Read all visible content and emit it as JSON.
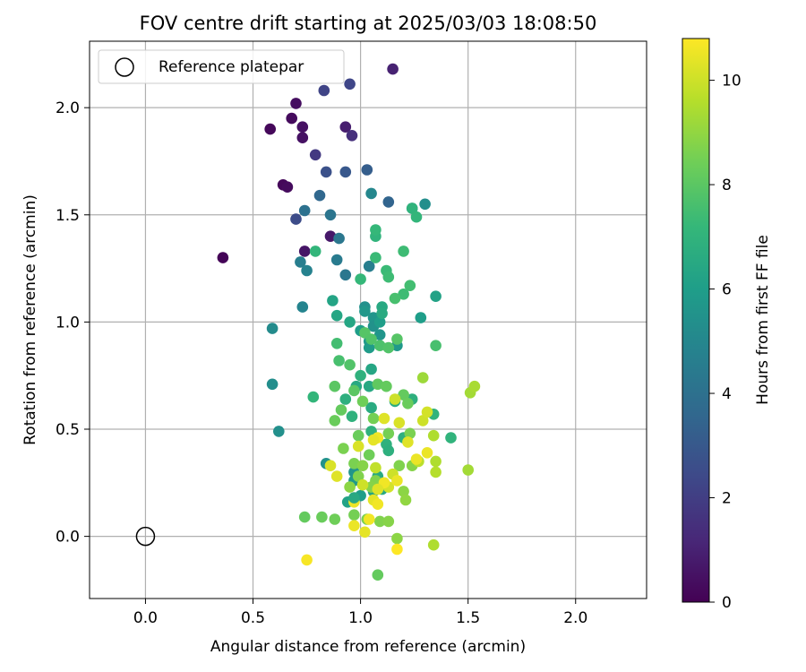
{
  "chart_data": {
    "type": "scatter",
    "title": "FOV centre drift starting at 2025/03/03 18:08:50",
    "xlabel": "Angular distance from reference (arcmin)",
    "ylabel": "Rotation from reference (arcmin)",
    "xlim": [
      -0.26,
      2.33
    ],
    "ylim": [
      -0.29,
      2.31
    ],
    "x_ticks": [
      "0.0",
      "0.5",
      "1.0",
      "1.5",
      "2.0"
    ],
    "y_ticks": [
      "0.0",
      "0.5",
      "1.0",
      "1.5",
      "2.0"
    ],
    "grid": true,
    "legend": {
      "position": "top-left",
      "entries": [
        "Reference platepar"
      ]
    },
    "reference_point": {
      "x": 0.0,
      "y": 0.0
    },
    "colorbar": {
      "label": "Hours from first FF file",
      "min": 0,
      "max": 10.8,
      "ticks": [
        "0",
        "2",
        "4",
        "6",
        "8",
        "10"
      ],
      "colormap": [
        "#440154",
        "#482878",
        "#3e4989",
        "#31688e",
        "#26828e",
        "#1f9e89",
        "#35b779",
        "#6ece58",
        "#b5de2b",
        "#fde725"
      ]
    },
    "points": [
      [
        0.36,
        1.3,
        0.1
      ],
      [
        0.58,
        1.9,
        0.2
      ],
      [
        0.64,
        1.64,
        0.2
      ],
      [
        0.66,
        1.63,
        0.3
      ],
      [
        0.68,
        1.95,
        0.3
      ],
      [
        0.7,
        2.02,
        0.4
      ],
      [
        0.73,
        1.91,
        0.5
      ],
      [
        0.73,
        1.86,
        0.5
      ],
      [
        0.74,
        1.33,
        0.6
      ],
      [
        0.86,
        1.4,
        0.7
      ],
      [
        0.93,
        1.91,
        0.9
      ],
      [
        1.15,
        2.18,
        1.0
      ],
      [
        0.96,
        1.87,
        1.5
      ],
      [
        0.79,
        1.78,
        1.8
      ],
      [
        0.83,
        2.08,
        2.2
      ],
      [
        0.95,
        2.11,
        2.3
      ],
      [
        0.7,
        1.48,
        2.5
      ],
      [
        0.84,
        1.7,
        2.7
      ],
      [
        0.93,
        1.7,
        3.0
      ],
      [
        1.03,
        1.71,
        3.2
      ],
      [
        0.81,
        1.59,
        3.6
      ],
      [
        1.13,
        1.56,
        3.5
      ],
      [
        0.74,
        1.52,
        4.0
      ],
      [
        0.86,
        1.5,
        4.2
      ],
      [
        0.9,
        1.39,
        4.3
      ],
      [
        0.93,
        1.22,
        4.3
      ],
      [
        0.89,
        1.29,
        4.5
      ],
      [
        1.04,
        1.26,
        4.6
      ],
      [
        0.72,
        1.28,
        4.6
      ],
      [
        0.75,
        1.24,
        4.8
      ],
      [
        0.73,
        1.07,
        4.9
      ],
      [
        1.05,
        1.6,
        5.0
      ],
      [
        1.24,
        1.53,
        5.0
      ],
      [
        1.3,
        1.55,
        5.3
      ],
      [
        0.59,
        0.97,
        5.2
      ],
      [
        0.59,
        0.71,
        5.3
      ],
      [
        0.62,
        0.49,
        5.4
      ],
      [
        1.02,
        1.07,
        5.4
      ],
      [
        1.06,
        1.02,
        5.6
      ],
      [
        1.02,
        1.05,
        5.7
      ],
      [
        1.06,
        0.98,
        5.5
      ],
      [
        1.09,
        0.94,
        5.6
      ],
      [
        1.04,
        0.91,
        5.8
      ],
      [
        1.09,
        1.0,
        6.0
      ],
      [
        1.0,
        0.96,
        6.0
      ],
      [
        1.04,
        0.88,
        5.9
      ],
      [
        1.17,
        0.89,
        5.8
      ],
      [
        1.28,
        1.02,
        6.0
      ],
      [
        1.35,
        1.12,
        6.2
      ],
      [
        0.87,
        1.1,
        6.3
      ],
      [
        0.89,
        1.03,
        6.4
      ],
      [
        0.95,
        1.0,
        6.4
      ],
      [
        1.1,
        1.07,
        6.5
      ],
      [
        1.1,
        1.04,
        6.6
      ],
      [
        1.05,
        0.78,
        6.4
      ],
      [
        1.04,
        0.7,
        6.5
      ],
      [
        0.98,
        0.7,
        6.5
      ],
      [
        1.05,
        0.6,
        6.6
      ],
      [
        1.16,
        0.63,
        6.7
      ],
      [
        1.24,
        0.64,
        6.8
      ],
      [
        0.93,
        0.64,
        6.8
      ],
      [
        1.0,
        0.75,
        6.9
      ],
      [
        0.96,
        0.56,
        6.9
      ],
      [
        1.05,
        0.49,
        6.9
      ],
      [
        1.12,
        0.43,
        6.9
      ],
      [
        1.2,
        0.46,
        6.8
      ],
      [
        1.34,
        0.57,
        7.0
      ],
      [
        1.42,
        0.46,
        7.0
      ],
      [
        0.78,
        0.65,
        7.1
      ],
      [
        0.84,
        0.34,
        5.5
      ],
      [
        0.97,
        0.3,
        5.6
      ],
      [
        0.97,
        0.26,
        5.8
      ],
      [
        1.0,
        0.19,
        6.0
      ],
      [
        0.94,
        0.16,
        6.2
      ],
      [
        1.06,
        0.21,
        6.3
      ],
      [
        1.1,
        0.22,
        6.5
      ],
      [
        1.08,
        0.28,
        6.6
      ],
      [
        1.13,
        0.4,
        6.8
      ],
      [
        1.24,
        1.53,
        7.0
      ],
      [
        1.26,
        1.49,
        7.1
      ],
      [
        1.0,
        1.2,
        7.2
      ],
      [
        1.12,
        1.24,
        7.3
      ],
      [
        1.13,
        1.21,
        7.4
      ],
      [
        1.2,
        1.13,
        7.4
      ],
      [
        1.23,
        1.17,
        7.5
      ],
      [
        1.16,
        1.11,
        7.6
      ],
      [
        1.07,
        1.4,
        7.0
      ],
      [
        1.07,
        1.43,
        7.2
      ],
      [
        1.07,
        1.3,
        7.3
      ],
      [
        1.2,
        1.33,
        7.4
      ],
      [
        0.79,
        1.33,
        7.1
      ],
      [
        0.89,
        0.9,
        7.5
      ],
      [
        0.9,
        0.82,
        7.6
      ],
      [
        0.95,
        0.8,
        7.8
      ],
      [
        1.02,
        0.95,
        7.9
      ],
      [
        1.05,
        0.92,
        7.8
      ],
      [
        1.09,
        0.89,
        7.7
      ],
      [
        1.13,
        0.88,
        7.8
      ],
      [
        1.17,
        0.92,
        7.9
      ],
      [
        1.35,
        0.89,
        7.6
      ],
      [
        0.88,
        0.7,
        8.0
      ],
      [
        0.97,
        0.68,
        8.0
      ],
      [
        1.08,
        0.71,
        8.1
      ],
      [
        1.12,
        0.7,
        8.2
      ],
      [
        1.2,
        0.66,
        8.2
      ],
      [
        1.22,
        0.62,
        8.3
      ],
      [
        0.91,
        0.59,
        8.2
      ],
      [
        0.88,
        0.54,
        8.3
      ],
      [
        1.01,
        0.63,
        8.4
      ],
      [
        1.06,
        0.55,
        8.5
      ],
      [
        1.13,
        0.48,
        8.5
      ],
      [
        1.23,
        0.48,
        8.6
      ],
      [
        0.99,
        0.47,
        8.3
      ],
      [
        1.04,
        0.38,
        8.4
      ],
      [
        0.92,
        0.41,
        8.6
      ],
      [
        0.97,
        0.34,
        8.6
      ],
      [
        0.99,
        0.28,
        8.7
      ],
      [
        1.01,
        0.33,
        8.8
      ],
      [
        1.07,
        0.26,
        8.7
      ],
      [
        1.05,
        0.23,
        8.8
      ],
      [
        0.95,
        0.23,
        8.9
      ],
      [
        1.2,
        0.21,
        8.9
      ],
      [
        1.21,
        0.17,
        9.0
      ],
      [
        1.18,
        0.33,
        8.7
      ],
      [
        1.24,
        0.33,
        8.8
      ],
      [
        0.74,
        0.09,
        8.2
      ],
      [
        0.82,
        0.09,
        8.3
      ],
      [
        0.88,
        0.08,
        8.4
      ],
      [
        0.97,
        0.1,
        8.5
      ],
      [
        1.03,
        0.08,
        8.6
      ],
      [
        1.09,
        0.07,
        8.7
      ],
      [
        1.13,
        0.07,
        8.8
      ],
      [
        1.17,
        -0.01,
        8.9
      ],
      [
        1.08,
        -0.18,
        8.2
      ],
      [
        1.34,
        -0.04,
        9.5
      ],
      [
        1.29,
        0.74,
        9.2
      ],
      [
        1.5,
        0.31,
        9.3
      ],
      [
        1.51,
        0.67,
        9.3
      ],
      [
        1.53,
        0.7,
        9.4
      ],
      [
        1.34,
        0.47,
        9.5
      ],
      [
        1.35,
        0.35,
        9.5
      ],
      [
        1.35,
        0.3,
        9.6
      ],
      [
        1.27,
        0.35,
        9.7
      ],
      [
        1.29,
        0.54,
        10.0
      ],
      [
        1.31,
        0.58,
        10.1
      ],
      [
        1.16,
        0.64,
        10.0
      ],
      [
        1.18,
        0.53,
        10.2
      ],
      [
        1.15,
        0.29,
        10.0
      ],
      [
        1.13,
        0.23,
        10.1
      ],
      [
        1.17,
        0.26,
        10.5
      ],
      [
        1.22,
        0.44,
        10.3
      ],
      [
        1.26,
        0.36,
        10.5
      ],
      [
        1.31,
        0.39,
        10.5
      ],
      [
        1.08,
        0.46,
        10.6
      ],
      [
        1.06,
        0.45,
        10.4
      ],
      [
        1.11,
        0.55,
        10.3
      ],
      [
        0.99,
        0.42,
        10.2
      ],
      [
        0.86,
        0.33,
        10.2
      ],
      [
        0.89,
        0.28,
        10.3
      ],
      [
        1.06,
        0.17,
        10.4
      ],
      [
        1.08,
        0.15,
        10.6
      ],
      [
        1.04,
        0.08,
        10.6
      ],
      [
        0.97,
        0.05,
        10.5
      ],
      [
        1.02,
        0.02,
        10.4
      ],
      [
        1.17,
        -0.06,
        10.8
      ],
      [
        0.75,
        -0.11,
        10.7
      ],
      [
        1.11,
        0.25,
        10.6
      ],
      [
        0.97,
        0.16,
        10.5
      ],
      [
        1.08,
        0.22,
        10.3
      ],
      [
        0.97,
        0.18,
        6.5
      ],
      [
        1.01,
        0.24,
        10.0
      ],
      [
        1.07,
        0.32,
        9.8
      ]
    ]
  }
}
